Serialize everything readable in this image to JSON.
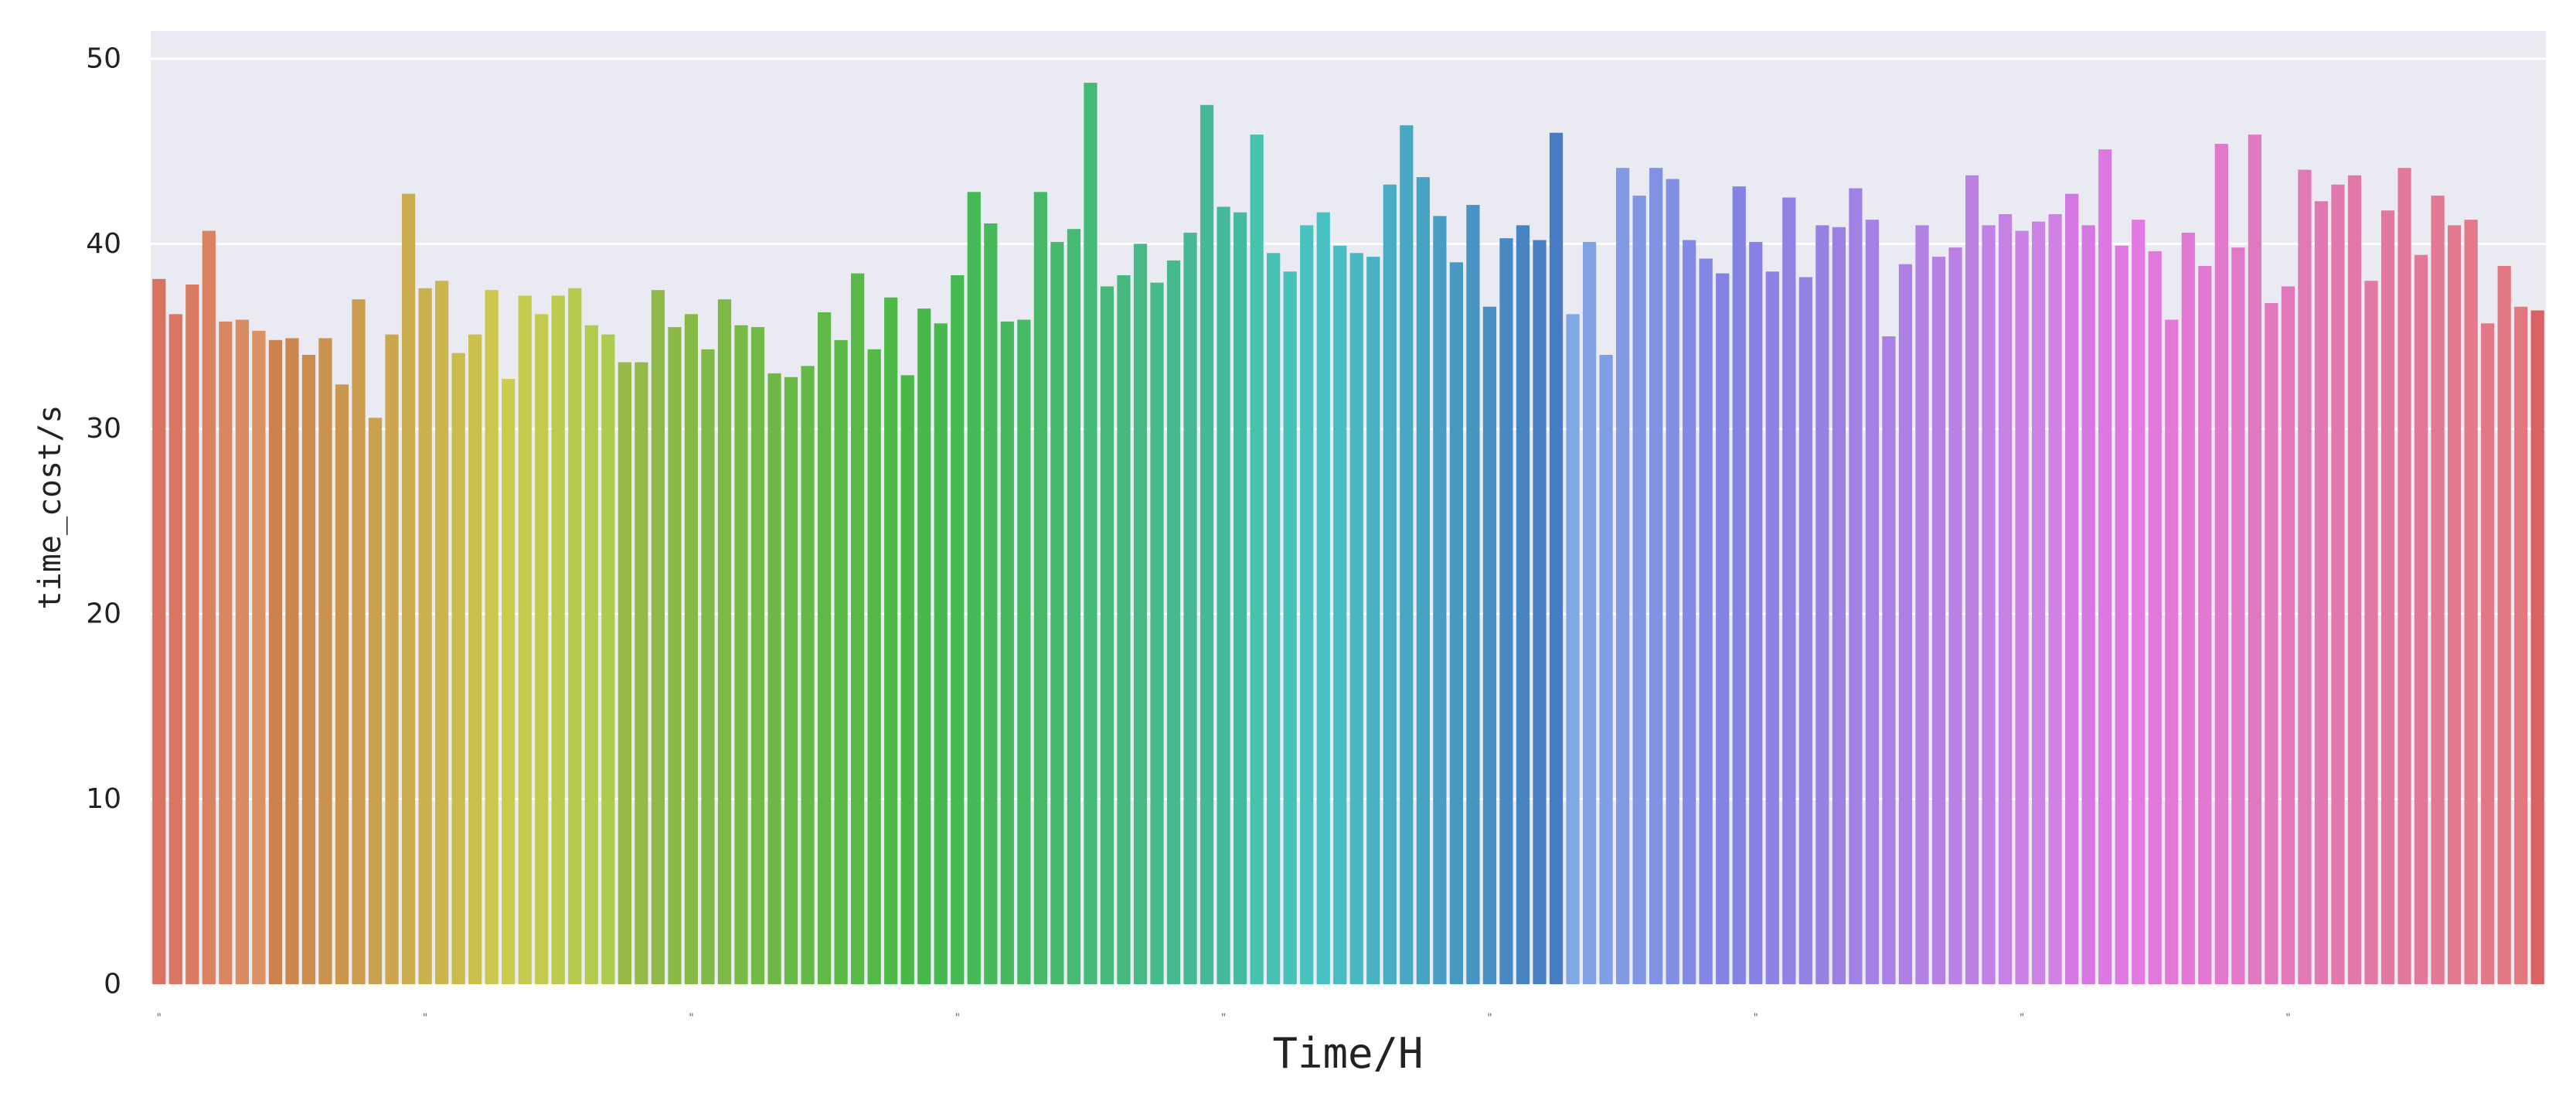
{
  "chart_data": {
    "type": "bar",
    "title": "",
    "xlabel": "Time/H",
    "ylabel": "time_cost/s",
    "ylim": [
      0,
      51.5
    ],
    "yticks": [
      0,
      10,
      20,
      30,
      40,
      50
    ],
    "grid": true,
    "legend": "none",
    "background": "#EAEAF2",
    "grid_color": "#FFFFFF",
    "palette": "husl",
    "values": [
      38.1,
      36.2,
      37.8,
      40.7,
      35.8,
      35.9,
      35.3,
      34.8,
      34.9,
      34.0,
      34.9,
      32.4,
      37.0,
      30.6,
      35.1,
      42.7,
      37.6,
      38.0,
      34.1,
      35.1,
      37.5,
      32.7,
      37.2,
      36.2,
      37.2,
      37.6,
      35.6,
      35.1,
      33.6,
      33.6,
      37.5,
      35.5,
      36.2,
      34.3,
      37.0,
      35.6,
      35.5,
      33.0,
      32.8,
      33.4,
      36.3,
      34.8,
      38.4,
      34.3,
      37.1,
      32.9,
      36.5,
      35.7,
      38.3,
      42.8,
      41.1,
      35.8,
      35.9,
      42.8,
      40.1,
      40.8,
      48.7,
      37.7,
      38.3,
      40.0,
      37.9,
      39.1,
      40.6,
      47.5,
      42.0,
      41.7,
      45.9,
      39.5,
      38.5,
      41.0,
      41.7,
      39.9,
      39.5,
      39.3,
      43.2,
      46.4,
      43.6,
      41.5,
      39.0,
      42.1,
      36.6,
      40.3,
      41.0,
      40.2,
      46.0,
      36.2,
      40.1,
      34.0,
      44.1,
      42.6,
      44.1,
      43.5,
      40.2,
      39.2,
      38.4,
      43.1,
      40.1,
      38.5,
      42.5,
      38.2,
      41.0,
      40.9,
      43.0,
      41.3,
      35.0,
      38.9,
      41.0,
      39.3,
      39.8,
      43.7,
      41.0,
      41.6,
      40.7,
      41.2,
      41.6,
      42.7,
      41.0,
      45.1,
      39.9,
      41.3,
      39.6,
      35.9,
      40.6,
      38.8,
      45.4,
      39.8,
      45.9,
      36.8,
      37.7,
      44.0,
      42.3,
      43.2,
      43.7,
      38.0,
      41.8,
      44.1,
      39.4,
      42.6,
      41.0,
      41.3,
      35.7,
      38.8,
      36.6,
      36.4
    ]
  }
}
